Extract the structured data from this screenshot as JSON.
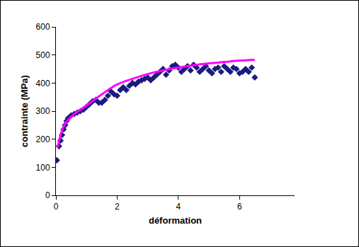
{
  "chart_data": {
    "type": "scatter",
    "x_label": "déformation",
    "y_label": "contrainte (MPa)",
    "xlim": [
      0,
      7.8
    ],
    "xticks": [
      0,
      2,
      4,
      6
    ],
    "ylim": [
      0,
      600
    ],
    "yticks": [
      0,
      100,
      200,
      300,
      400,
      500,
      600
    ],
    "grid": false,
    "series": [
      {
        "type": "scatter",
        "marker": "diamond",
        "color": "#1a1a80",
        "x": [
          0.03,
          0.1,
          0.15,
          0.2,
          0.25,
          0.3,
          0.35,
          0.4,
          0.5,
          0.6,
          0.7,
          0.8,
          0.9,
          1.0,
          1.1,
          1.2,
          1.3,
          1.4,
          1.5,
          1.6,
          1.7,
          1.8,
          1.9,
          2.0,
          2.1,
          2.2,
          2.3,
          2.4,
          2.5,
          2.6,
          2.7,
          2.8,
          2.9,
          3.0,
          3.1,
          3.2,
          3.3,
          3.4,
          3.5,
          3.6,
          3.7,
          3.8,
          3.9,
          4.0,
          4.1,
          4.2,
          4.3,
          4.4,
          4.5,
          4.6,
          4.7,
          4.8,
          4.9,
          5.0,
          5.1,
          5.2,
          5.3,
          5.4,
          5.5,
          5.6,
          5.7,
          5.8,
          5.9,
          6.0,
          6.1,
          6.2,
          6.3,
          6.4,
          6.5
        ],
        "values": [
          125,
          175,
          195,
          215,
          235,
          250,
          265,
          275,
          285,
          290,
          295,
          300,
          305,
          315,
          325,
          335,
          340,
          330,
          330,
          340,
          355,
          370,
          360,
          355,
          375,
          385,
          375,
          390,
          400,
          395,
          405,
          410,
          415,
          420,
          410,
          420,
          430,
          440,
          450,
          430,
          445,
          460,
          465,
          455,
          440,
          450,
          460,
          445,
          465,
          455,
          440,
          450,
          460,
          445,
          435,
          450,
          455,
          440,
          460,
          450,
          440,
          455,
          450,
          435,
          440,
          450,
          440,
          455,
          420
        ]
      },
      {
        "type": "line",
        "line_style": "solid",
        "color": "#ff00ff",
        "x": [
          0.05,
          0.25,
          0.5,
          1.0,
          1.5,
          2.0,
          2.5,
          3.0,
          3.5,
          4.0,
          4.5,
          5.0,
          5.5,
          6.0,
          6.5
        ],
        "values": [
          170,
          245,
          280,
          320,
          360,
          395,
          415,
          432,
          445,
          455,
          463,
          470,
          475,
          480,
          483
        ]
      }
    ]
  }
}
